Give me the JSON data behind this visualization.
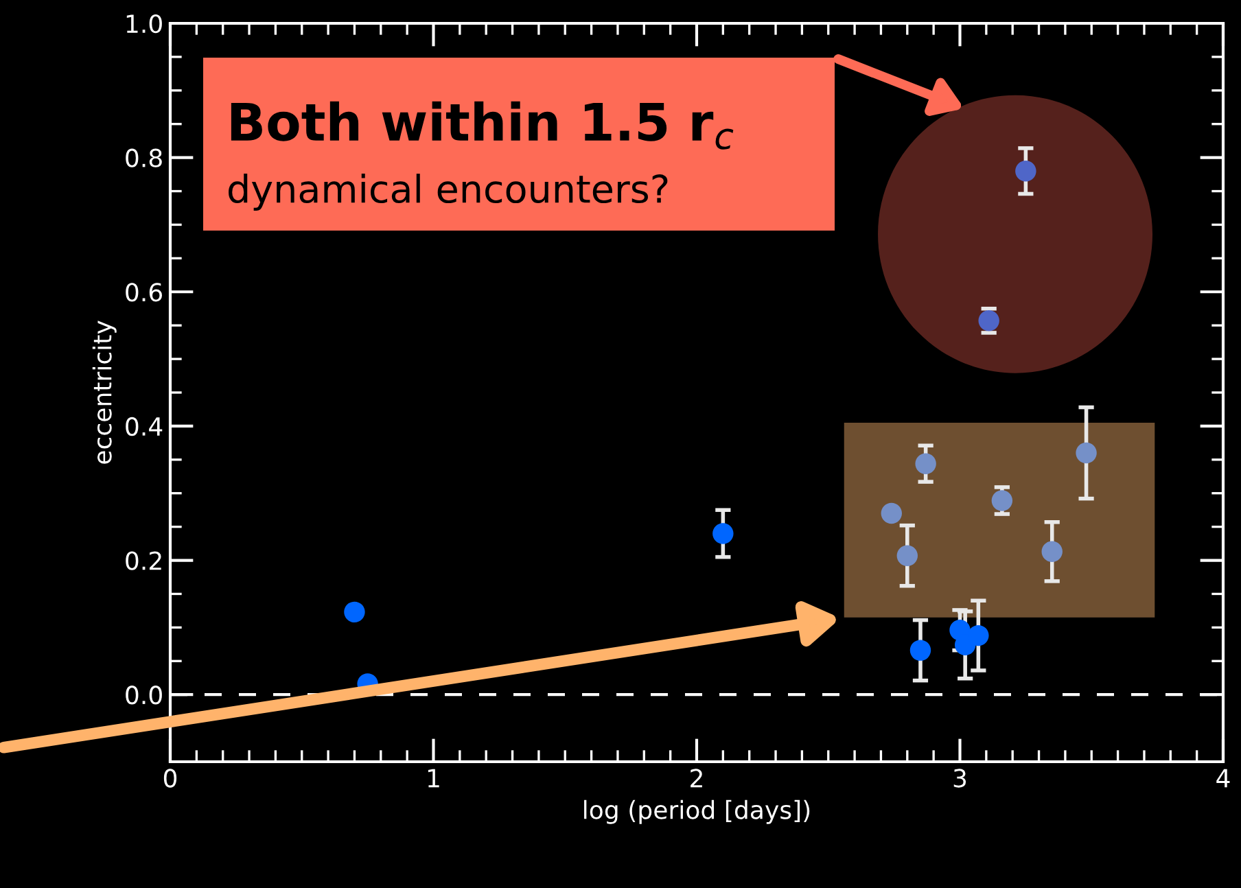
{
  "chart_data": {
    "type": "scatter",
    "xlabel": "log (period [days])",
    "ylabel": "eccentricity",
    "annotations": [
      "Both within 1.5 r$_{c}$",
      "dynamical encounters?"
    ],
    "x": [
      0.7,
      0.75,
      2.1,
      2.74,
      2.8,
      2.87,
      3.16,
      3.35,
      3.48,
      2.85,
      3.0,
      3.02,
      3.07,
      3.25,
      3.11
    ],
    "values": [
      0.123,
      0.016,
      0.24,
      0.27,
      0.207,
      0.344,
      0.289,
      0.213,
      0.36,
      0.066,
      0.096,
      0.074,
      0.088,
      0.78,
      0.557
    ],
    "errors": [
      null,
      null,
      0.035,
      null,
      0.045,
      0.027,
      0.02,
      0.044,
      0.068,
      0.045,
      0.03,
      0.05,
      0.052,
      0.034,
      0.018
    ],
    "colors": [
      "#0066ff",
      "#0066ff",
      "#0066ff",
      "#7590c8",
      "#7590c8",
      "#7590c8",
      "#7590c8",
      "#7590c8",
      "#7590c8",
      "#0066ff",
      "#0066ff",
      "#0066ff",
      "#0066ff",
      "#4f66c8",
      "#4f66c8"
    ],
    "marker": "circle",
    "xlim": [
      0,
      4
    ],
    "xticks": [
      0,
      1,
      2,
      3,
      4
    ],
    "ylim": [
      -0.1,
      1.0
    ],
    "yticks": [
      {
        "value": 0,
        "label": "0.0"
      },
      0.2,
      0.4,
      0.6,
      0.8,
      {
        "value": 1,
        "label": "1.0"
      }
    ],
    "ref_lines": [
      {
        "axis": "y",
        "value": 0,
        "color": "#ffffff",
        "line_style": "dashed"
      }
    ],
    "grid": false,
    "legend": false
  }
}
